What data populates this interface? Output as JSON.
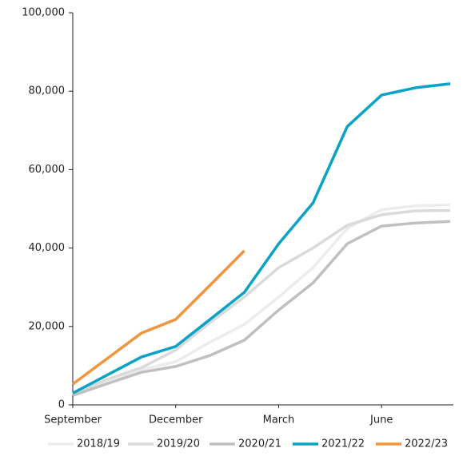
{
  "chart_data": {
    "type": "line",
    "categories": [
      "September",
      null,
      null,
      "December",
      null,
      null,
      "March",
      null,
      null,
      "June",
      null,
      null
    ],
    "series": [
      {
        "name": "2018/19",
        "color": "#ececec",
        "values": [
          2500,
          6000,
          9000,
          11000,
          16000,
          20500,
          27500,
          35000,
          45000,
          49800,
          50800,
          51000
        ]
      },
      {
        "name": "2019/20",
        "color": "#dadada",
        "values": [
          2800,
          6500,
          9500,
          14000,
          21000,
          27500,
          35000,
          40000,
          45800,
          48500,
          49500,
          49600
        ]
      },
      {
        "name": "2020/21",
        "color": "#c0c0c0",
        "values": [
          2400,
          5400,
          8300,
          9800,
          12600,
          16500,
          24200,
          31100,
          41100,
          45600,
          46400,
          46800
        ]
      },
      {
        "name": "2021/22",
        "color": "#0aa3c6",
        "values": [
          3000,
          7600,
          12200,
          14900,
          21800,
          28700,
          41100,
          51500,
          71000,
          79000,
          80900,
          81900
        ]
      },
      {
        "name": "2022/23",
        "color": "#f0953f",
        "values": [
          5300,
          11800,
          18300,
          21800,
          30500,
          39300,
          null,
          null,
          null,
          null,
          null,
          null
        ]
      }
    ],
    "ylim": [
      0,
      100000
    ],
    "yticks": [
      0,
      {
        "value": 20000,
        "label": "20,000"
      },
      {
        "value": 40000,
        "label": "40,000"
      },
      {
        "value": 60000,
        "label": "60,000"
      },
      {
        "value": 80000,
        "label": "80,000"
      },
      {
        "value": 100000,
        "label": "100,000"
      }
    ],
    "legend": "bottom"
  }
}
